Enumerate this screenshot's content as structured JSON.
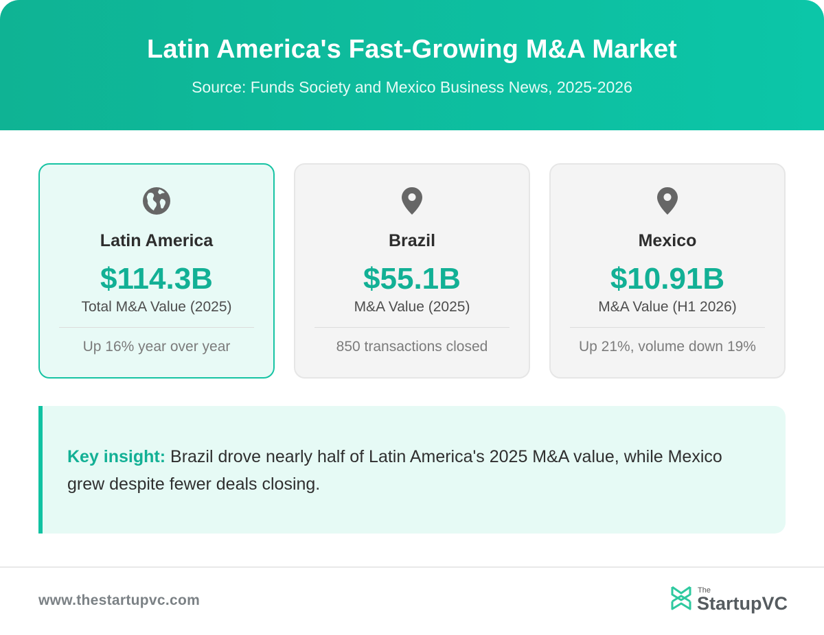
{
  "header": {
    "title": "Latin America's Fast-Growing M&A Market",
    "subtitle": "Source: Funds Society and Mexico Business News, 2025-2026"
  },
  "stats": [
    {
      "icon": "globe-icon",
      "region": "Latin America",
      "value": "$114.3B",
      "label": "Total M&A Value (2025)",
      "note": "Up 16% year over year",
      "highlighted": true
    },
    {
      "icon": "map-pin-icon",
      "region": "Brazil",
      "value": "$55.1B",
      "label": "M&A Value (2025)",
      "note": "850 transactions closed",
      "highlighted": false
    },
    {
      "icon": "map-pin-icon",
      "region": "Mexico",
      "value": "$10.91B",
      "label": "M&A Value (H1 2026)",
      "note": "Up 21%, volume down 19%",
      "highlighted": false
    }
  ],
  "insight": {
    "lead": "Key insight:",
    "text": " Brazil drove nearly half of Latin America's 2025 M&A value, while Mexico grew despite fewer deals closing."
  },
  "footer": {
    "url": "www.thestartupvc.com",
    "logo_small": "The",
    "logo_main": "StartupVC"
  },
  "colors": {
    "accent": "#12b095",
    "header_start": "#0fb394",
    "header_end": "#0cc6a8",
    "insight_bg": "#e6faf5",
    "icon_gray": "#666666"
  }
}
